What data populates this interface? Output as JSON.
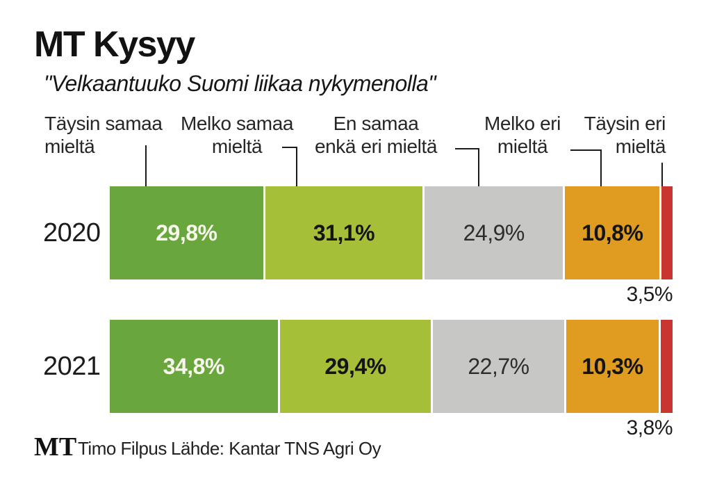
{
  "header": {
    "title": "MT Kysyy",
    "question": "\"Velkaantuuko Suomi liikaa nykymenolla\""
  },
  "chart_data": {
    "type": "bar",
    "stacked": true,
    "orientation": "horizontal",
    "unit": "%",
    "categories": [
      "2020",
      "2021"
    ],
    "series": [
      {
        "name": "Täysin samaa mieltä",
        "color": "#6aa63e",
        "values": [
          29.8,
          34.8
        ],
        "label_color": "#f7f7ee",
        "label_weight": "700"
      },
      {
        "name": "Melko samaa mieltä",
        "color": "#a5bf39",
        "values": [
          31.1,
          29.4
        ],
        "label_color": "#141414",
        "label_weight": "700"
      },
      {
        "name": "En samaa enkä eri mieltä",
        "color": "#c7c7c6",
        "values": [
          24.9,
          22.7
        ],
        "label_color": "#2d2d2d",
        "label_weight": "400"
      },
      {
        "name": "Melko eri mieltä",
        "color": "#e09b21",
        "values": [
          10.8,
          10.3
        ],
        "label_color": "#141414",
        "label_weight": "700"
      },
      {
        "name": "Täysin eri mieltä",
        "color": "#c8362f",
        "values": [
          3.5,
          3.8
        ],
        "label_color": "#1c1c1c",
        "label_weight": "400"
      }
    ],
    "legend_position": "top",
    "grid": false,
    "xlim": [
      0,
      100
    ]
  },
  "legend": {
    "items": [
      {
        "line1": "Täysin samaa",
        "line2": "mieltä"
      },
      {
        "line1": "Melko samaa",
        "line2": "mieltä"
      },
      {
        "line1": "En samaa",
        "line2": "enkä eri mieltä"
      },
      {
        "line1": "Melko eri",
        "line2": "mieltä"
      },
      {
        "line1": "Täysin eri",
        "line2": "mieltä"
      }
    ]
  },
  "rows": [
    {
      "year": "2020",
      "segment_labels": [
        "29,8%",
        "31,1%",
        "24,9%",
        "10,8%",
        ""
      ],
      "below_label": "3,5%"
    },
    {
      "year": "2021",
      "segment_labels": [
        "34,8%",
        "29,4%",
        "22,7%",
        "10,3%",
        ""
      ],
      "below_label": "3,8%"
    }
  ],
  "footer": {
    "logo": "MT",
    "author": "Timo Filpus",
    "source": "Lähde: Kantar TNS Agri Oy"
  }
}
